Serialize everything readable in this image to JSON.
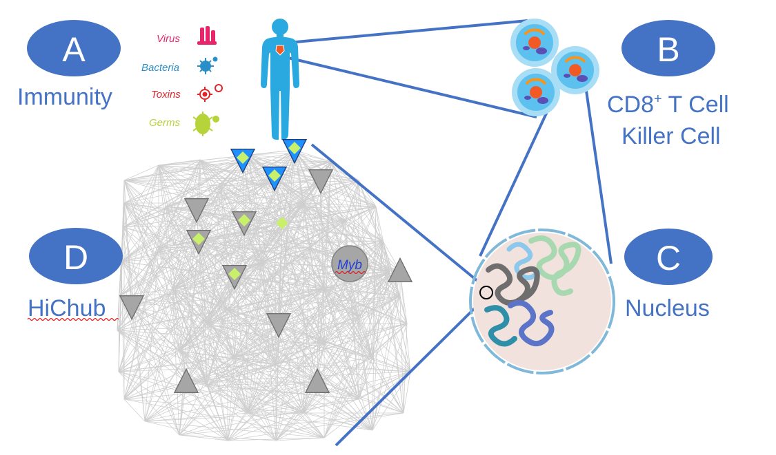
{
  "panels": {
    "a": {
      "letter": "A",
      "caption": "Immunity"
    },
    "b": {
      "letter": "B",
      "caption_line1": "CD8",
      "caption_sup": "+",
      "caption_line1_rest": " T Cell",
      "caption_line2": "Killer Cell"
    },
    "c": {
      "letter": "C",
      "caption": "Nucleus"
    },
    "d": {
      "letter": "D",
      "caption": "HiChub"
    }
  },
  "threats": [
    {
      "label": "Virus",
      "color": "#E8256B",
      "icon": "virus-icon"
    },
    {
      "label": "Bacteria",
      "color": "#2A8FC8",
      "icon": "bacteria-icon"
    },
    {
      "label": "Toxins",
      "color": "#E0262B",
      "icon": "toxin-icon"
    },
    {
      "label": "Germs",
      "color": "#B6D33A",
      "icon": "germ-icon"
    }
  ],
  "network": {
    "hub_label": "Myb"
  },
  "colors": {
    "oval": "#4472C4",
    "caption": "#4472C4",
    "connector": "#4472C4",
    "body": "#2AA9E0",
    "node_gray": "#A6A6A6",
    "node_blue": "#1E90FF",
    "diamond": "#C9F06B",
    "nucleus_fill": "#F2E2DD"
  }
}
